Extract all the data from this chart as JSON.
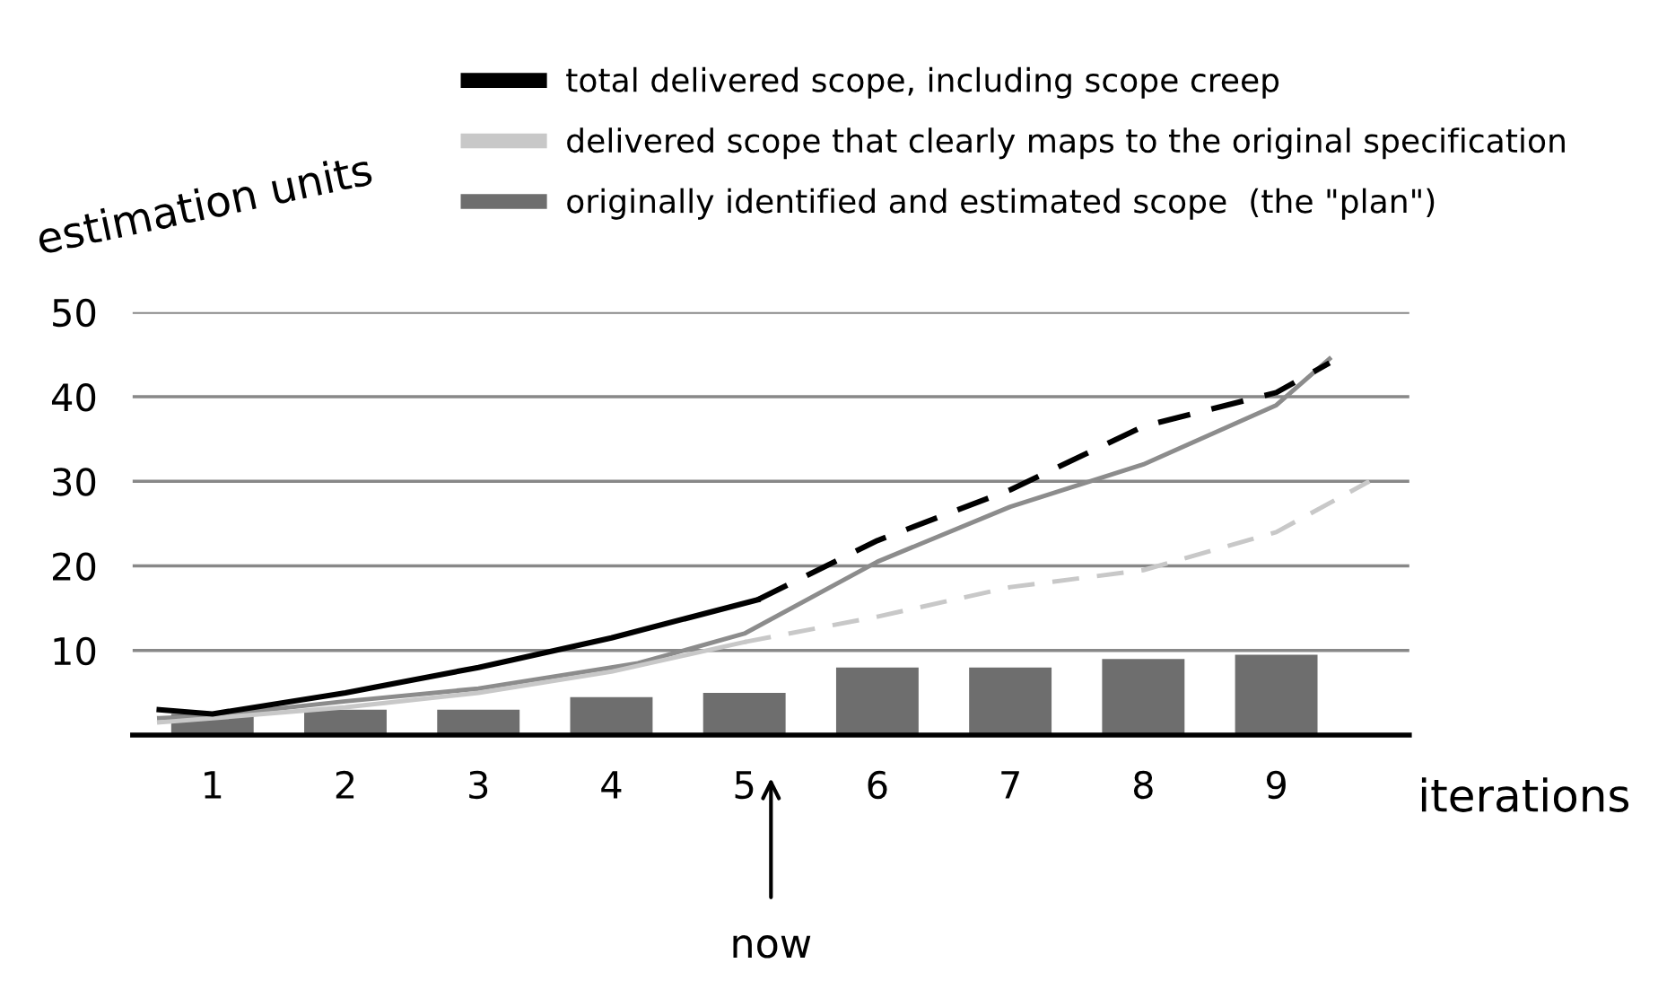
{
  "chart_data": {
    "type": "line",
    "xlabel": "iterations",
    "ylabel": "estimation units",
    "xlim": [
      0.4,
      10
    ],
    "xticks": [
      1,
      2,
      3,
      4,
      5,
      6,
      7,
      8,
      9
    ],
    "ylim": [
      0,
      50
    ],
    "yticks": [
      10,
      20,
      30,
      40,
      50
    ],
    "grid": "y",
    "legend": "top",
    "series": [
      {
        "type": "bar",
        "name": "originally identified and estimated scope  (the \"plan\")",
        "color": "#6e6e6e",
        "x": [
          1,
          2,
          3,
          4,
          5,
          6,
          7,
          8,
          9
        ],
        "values": [
          2.5,
          3,
          3,
          4.5,
          5,
          8,
          8,
          9,
          9.5
        ]
      },
      {
        "color": "#8c8c8c",
        "line_style": "solid",
        "x": [
          0.6,
          1,
          2,
          3,
          4,
          4.2,
          5,
          6,
          7,
          8,
          9,
          9.4
        ],
        "values": [
          2,
          2.3,
          4,
          5.5,
          8,
          8.5,
          12,
          20.5,
          27,
          32,
          39,
          44.5
        ]
      },
      {
        "name": "delivered scope that clearly maps to the original specification",
        "color": "#c8c8c8",
        "line_style": "solid",
        "x": [
          0.6,
          1,
          2,
          3,
          4,
          5
        ],
        "values": [
          1.5,
          2,
          3.3,
          5,
          7.5,
          11
        ]
      },
      {
        "color": "#c8c8c8",
        "line_style": "dashed",
        "x": [
          5,
          6,
          7,
          8,
          9,
          9.7
        ],
        "values": [
          11,
          14,
          17.5,
          19.5,
          24,
          30
        ]
      },
      {
        "name": "total delivered scope, including scope creep",
        "color": "#000000",
        "line_style": "solid",
        "x": [
          0.6,
          1,
          2,
          3,
          4,
          5.1
        ],
        "values": [
          3,
          2.5,
          5,
          8,
          11.5,
          16
        ]
      },
      {
        "color": "#000000",
        "line_style": "dashed",
        "x": [
          5.1,
          6,
          7,
          8,
          9,
          9.4
        ],
        "values": [
          16,
          23,
          29,
          36.5,
          40.5,
          44
        ]
      }
    ],
    "annotations": [
      "now"
    ]
  }
}
